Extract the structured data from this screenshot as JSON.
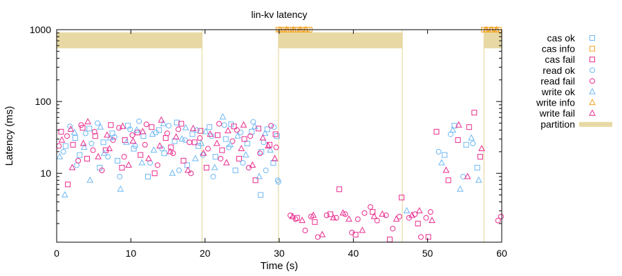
{
  "chart_data": {
    "type": "scatter",
    "title": "lin-kv latency",
    "xlabel": "Time (s)",
    "ylabel": "Latency (ms)",
    "xlim": [
      0,
      60
    ],
    "ylim": [
      1.1,
      1000
    ],
    "yscale": "log",
    "x_ticks": [
      0,
      10,
      20,
      30,
      40,
      50,
      60
    ],
    "y_ticks": [
      10,
      100,
      1000
    ],
    "legend_position": "right",
    "colors": {
      "ok": "#6cb7f4",
      "info": "#f4a020",
      "fail": "#e8288c",
      "partition": "#e8d9a4"
    },
    "partitions": [
      [
        0,
        19.6
      ],
      [
        29.9,
        46.6
      ],
      [
        57.6,
        60
      ]
    ],
    "series": [
      {
        "name": "cas ok",
        "marker": "square",
        "color": "#6cb7f4",
        "points": [
          [
            1.2,
            24
          ],
          [
            2.5,
            31
          ],
          [
            3.1,
            18
          ],
          [
            4.4,
            42
          ],
          [
            5.8,
            12
          ],
          [
            6.3,
            27
          ],
          [
            7.5,
            36
          ],
          [
            8.2,
            15
          ],
          [
            9.6,
            46
          ],
          [
            10.4,
            22
          ],
          [
            11.7,
            33
          ],
          [
            12.3,
            9
          ],
          [
            13.8,
            40
          ],
          [
            14.5,
            19
          ],
          [
            15.9,
            28
          ],
          [
            16.2,
            51
          ],
          [
            17.6,
            13
          ],
          [
            18.3,
            35
          ],
          [
            19.1,
            24
          ],
          [
            20.6,
            44
          ],
          [
            21.4,
            17
          ],
          [
            22.8,
            30
          ],
          [
            23.5,
            48
          ],
          [
            24.1,
            11
          ],
          [
            25.7,
            26
          ],
          [
            26.3,
            38
          ],
          [
            27.6,
            20
          ],
          [
            28.4,
            41
          ],
          [
            29.2,
            14
          ],
          [
            29.7,
            33
          ],
          [
            27.5,
            5
          ],
          [
            52.3,
            18
          ],
          [
            53.6,
            46
          ],
          [
            55.2,
            25
          ],
          [
            56.7,
            12
          ]
        ]
      },
      {
        "name": "cas info",
        "marker": "square",
        "color": "#f4a020",
        "points": [
          [
            29.9,
            1000
          ],
          [
            30.3,
            1000
          ],
          [
            30.7,
            1000
          ],
          [
            31.2,
            1000
          ],
          [
            31.6,
            1000
          ],
          [
            32.1,
            1000
          ],
          [
            32.5,
            1000
          ],
          [
            33.0,
            1000
          ],
          [
            33.4,
            1000
          ],
          [
            33.8,
            1000
          ],
          [
            34.1,
            1000
          ],
          [
            57.6,
            1000
          ],
          [
            58.0,
            1000
          ],
          [
            58.4,
            1000
          ],
          [
            58.8,
            1000
          ],
          [
            59.2,
            1000
          ],
          [
            59.6,
            1000
          ]
        ]
      },
      {
        "name": "cas fail",
        "marker": "square",
        "color": "#e8288c",
        "points": [
          [
            0.6,
            38
          ],
          [
            1.5,
            7
          ],
          [
            2.2,
            25
          ],
          [
            3.5,
            43
          ],
          [
            4.1,
            16
          ],
          [
            5.2,
            33
          ],
          [
            6.6,
            21
          ],
          [
            7.3,
            47
          ],
          [
            8.8,
            12
          ],
          [
            9.2,
            29
          ],
          [
            10.9,
            37
          ],
          [
            11.3,
            18
          ],
          [
            12.8,
            44
          ],
          [
            13.2,
            10
          ],
          [
            14.7,
            31
          ],
          [
            15.4,
            23
          ],
          [
            16.8,
            49
          ],
          [
            17.1,
            15
          ],
          [
            18.6,
            27
          ],
          [
            19.4,
            39
          ],
          [
            20.2,
            12
          ],
          [
            21.7,
            34
          ],
          [
            22.3,
            21
          ],
          [
            23.9,
            45
          ],
          [
            24.6,
            16
          ],
          [
            25.3,
            30
          ],
          [
            26.8,
            8
          ],
          [
            27.2,
            42
          ],
          [
            28.7,
            25
          ],
          [
            29.5,
            35
          ],
          [
            32.4,
            2.4
          ],
          [
            34.8,
            2.1
          ],
          [
            36.9,
            2.7
          ],
          [
            38.1,
            6
          ],
          [
            40.3,
            1.4
          ],
          [
            42.6,
            2.9
          ],
          [
            44.9,
            1.2
          ],
          [
            46.5,
            4.6
          ],
          [
            48.7,
            2.0
          ],
          [
            50.1,
            1.3
          ],
          [
            51.2,
            38
          ],
          [
            52.8,
            8
          ],
          [
            54.1,
            29
          ],
          [
            55.6,
            44
          ],
          [
            56.3,
            70
          ],
          [
            57.1,
            17
          ]
        ]
      },
      {
        "name": "read ok",
        "marker": "circle",
        "color": "#6cb7f4",
        "points": [
          [
            0.9,
            20
          ],
          [
            1.8,
            45
          ],
          [
            2.7,
            13
          ],
          [
            3.9,
            36
          ],
          [
            4.7,
            26
          ],
          [
            5.5,
            50
          ],
          [
            6.9,
            17
          ],
          [
            7.8,
            32
          ],
          [
            8.5,
            9
          ],
          [
            9.9,
            41
          ],
          [
            10.6,
            24
          ],
          [
            11.1,
            53
          ],
          [
            12.6,
            14
          ],
          [
            13.4,
            37
          ],
          [
            14.2,
            22
          ],
          [
            15.1,
            46
          ],
          [
            16.5,
            11
          ],
          [
            17.3,
            29
          ],
          [
            18.9,
            40
          ],
          [
            19.7,
            18
          ],
          [
            20.9,
            33
          ],
          [
            21.1,
            9
          ],
          [
            22.6,
            47
          ],
          [
            23.2,
            23
          ],
          [
            24.8,
            37
          ],
          [
            25.1,
            14
          ],
          [
            26.5,
            52
          ],
          [
            27.9,
            27
          ],
          [
            28.2,
            11
          ],
          [
            29.3,
            44
          ],
          [
            29.8,
            8
          ],
          [
            29.9,
            7.6
          ],
          [
            51.5,
            20
          ],
          [
            53.1,
            35
          ],
          [
            54.8,
            9
          ],
          [
            56.1,
            26
          ]
        ]
      },
      {
        "name": "read fail",
        "marker": "circle",
        "color": "#e8288c",
        "points": [
          [
            0.3,
            24
          ],
          [
            1.4,
            33
          ],
          [
            2.9,
            15
          ],
          [
            3.3,
            47
          ],
          [
            4.9,
            21
          ],
          [
            5.1,
            38
          ],
          [
            6.1,
            11
          ],
          [
            7.6,
            29
          ],
          [
            8.4,
            43
          ],
          [
            9.1,
            17
          ],
          [
            10.2,
            34
          ],
          [
            11.9,
            25
          ],
          [
            12.1,
            48
          ],
          [
            13.6,
            13
          ],
          [
            14.9,
            36
          ],
          [
            15.7,
            19
          ],
          [
            16.4,
            41
          ],
          [
            17.9,
            27
          ],
          [
            18.1,
            10
          ],
          [
            19.3,
            31
          ],
          [
            20.4,
            22
          ],
          [
            21.9,
            49
          ],
          [
            22.1,
            16
          ],
          [
            23.7,
            28
          ],
          [
            24.3,
            40
          ],
          [
            25.9,
            12
          ],
          [
            26.1,
            33
          ],
          [
            27.4,
            19
          ],
          [
            28.9,
            46
          ],
          [
            29.6,
            23
          ],
          [
            31.5,
            2.6
          ],
          [
            32.2,
            2.3
          ],
          [
            33.5,
            1.6
          ],
          [
            34.3,
            2.5
          ],
          [
            35.2,
            1.3
          ],
          [
            36.4,
            2.6
          ],
          [
            37.7,
            2.4
          ],
          [
            38.9,
            2.7
          ],
          [
            39.8,
            1.5
          ],
          [
            40.6,
            2.3
          ],
          [
            41.5,
            2.8
          ],
          [
            42.3,
            3.4
          ],
          [
            43.2,
            2.2
          ],
          [
            44.4,
            2.6
          ],
          [
            45.3,
            1.7
          ],
          [
            46.2,
            2.5
          ],
          [
            47.5,
            2.4
          ],
          [
            48.3,
            2.7
          ],
          [
            49.1,
            1.3
          ],
          [
            49.8,
            2.4
          ],
          [
            50.4,
            2.9
          ],
          [
            59.5,
            2.2
          ],
          [
            59.9,
            2.5
          ]
        ]
      },
      {
        "name": "write ok",
        "marker": "triangle",
        "color": "#6cb7f4",
        "points": [
          [
            0.4,
            17
          ],
          [
            1.1,
            5
          ],
          [
            2.4,
            37
          ],
          [
            3.7,
            23
          ],
          [
            4.5,
            8
          ],
          [
            5.9,
            44
          ],
          [
            6.4,
            19
          ],
          [
            7.2,
            31
          ],
          [
            8.6,
            6
          ],
          [
            9.4,
            27
          ],
          [
            10.8,
            40
          ],
          [
            11.5,
            14
          ],
          [
            12.9,
            35
          ],
          [
            13.1,
            21
          ],
          [
            14.4,
            49
          ],
          [
            15.6,
            10
          ],
          [
            16.9,
            30
          ],
          [
            17.4,
            43
          ],
          [
            18.7,
            16
          ],
          [
            19.5,
            26
          ],
          [
            20.1,
            38
          ],
          [
            21.3,
            12
          ],
          [
            22.4,
            61
          ],
          [
            23.4,
            25
          ],
          [
            24.4,
            33
          ],
          [
            25.5,
            18
          ],
          [
            26.7,
            45
          ],
          [
            27.3,
            9
          ],
          [
            28.1,
            36
          ],
          [
            28.8,
            21
          ],
          [
            47.2,
            3.0
          ],
          [
            51.9,
            14
          ],
          [
            53.4,
            40
          ],
          [
            54.4,
            6
          ],
          [
            55.9,
            31
          ],
          [
            56.9,
            8
          ]
        ]
      },
      {
        "name": "write info",
        "marker": "triangle",
        "color": "#f4a020",
        "points": [
          [
            30.1,
            1000
          ],
          [
            31.0,
            1000
          ],
          [
            31.9,
            1000
          ],
          [
            32.8,
            1000
          ],
          [
            33.6,
            1000
          ],
          [
            57.9,
            1000
          ],
          [
            58.6,
            1000
          ],
          [
            59.3,
            1000
          ]
        ]
      },
      {
        "name": "write fail",
        "marker": "triangle",
        "color": "#e8288c",
        "points": [
          [
            0.7,
            29
          ],
          [
            1.9,
            41
          ],
          [
            2.1,
            12
          ],
          [
            3.6,
            26
          ],
          [
            4.2,
            52
          ],
          [
            5.6,
            17
          ],
          [
            6.8,
            34
          ],
          [
            7.1,
            22
          ],
          [
            8.9,
            45
          ],
          [
            9.7,
            13
          ],
          [
            10.3,
            28
          ],
          [
            11.6,
            38
          ],
          [
            12.4,
            16
          ],
          [
            13.9,
            24
          ],
          [
            14.1,
            55
          ],
          [
            15.3,
            20
          ],
          [
            16.1,
            32
          ],
          [
            17.7,
            11
          ],
          [
            18.4,
            42
          ],
          [
            19.8,
            19
          ],
          [
            20.7,
            35
          ],
          [
            21.6,
            26
          ],
          [
            22.9,
            14
          ],
          [
            23.1,
            39
          ],
          [
            24.9,
            22
          ],
          [
            25.2,
            47
          ],
          [
            26.4,
            13
          ],
          [
            27.8,
            31
          ],
          [
            28.5,
            24
          ],
          [
            29.4,
            16
          ],
          [
            31.8,
            2.5
          ],
          [
            33.1,
            2.2
          ],
          [
            34.6,
            2.6
          ],
          [
            35.8,
            1.4
          ],
          [
            37.3,
            2.4
          ],
          [
            38.6,
            2.8
          ],
          [
            39.4,
            2.3
          ],
          [
            41.2,
            1.6
          ],
          [
            42.8,
            2.5
          ],
          [
            43.9,
            2.7
          ],
          [
            45.8,
            2.3
          ],
          [
            47.9,
            2.6
          ],
          [
            48.9,
            3.0
          ],
          [
            50.6,
            2.2
          ],
          [
            52.5,
            11
          ],
          [
            54.2,
            47
          ],
          [
            55.4,
            9
          ],
          [
            57.3,
            22
          ]
        ]
      }
    ],
    "legend": [
      "cas ok",
      "cas info",
      "cas fail",
      "read ok",
      "read fail",
      "write ok",
      "write info",
      "write fail",
      "partition"
    ]
  }
}
